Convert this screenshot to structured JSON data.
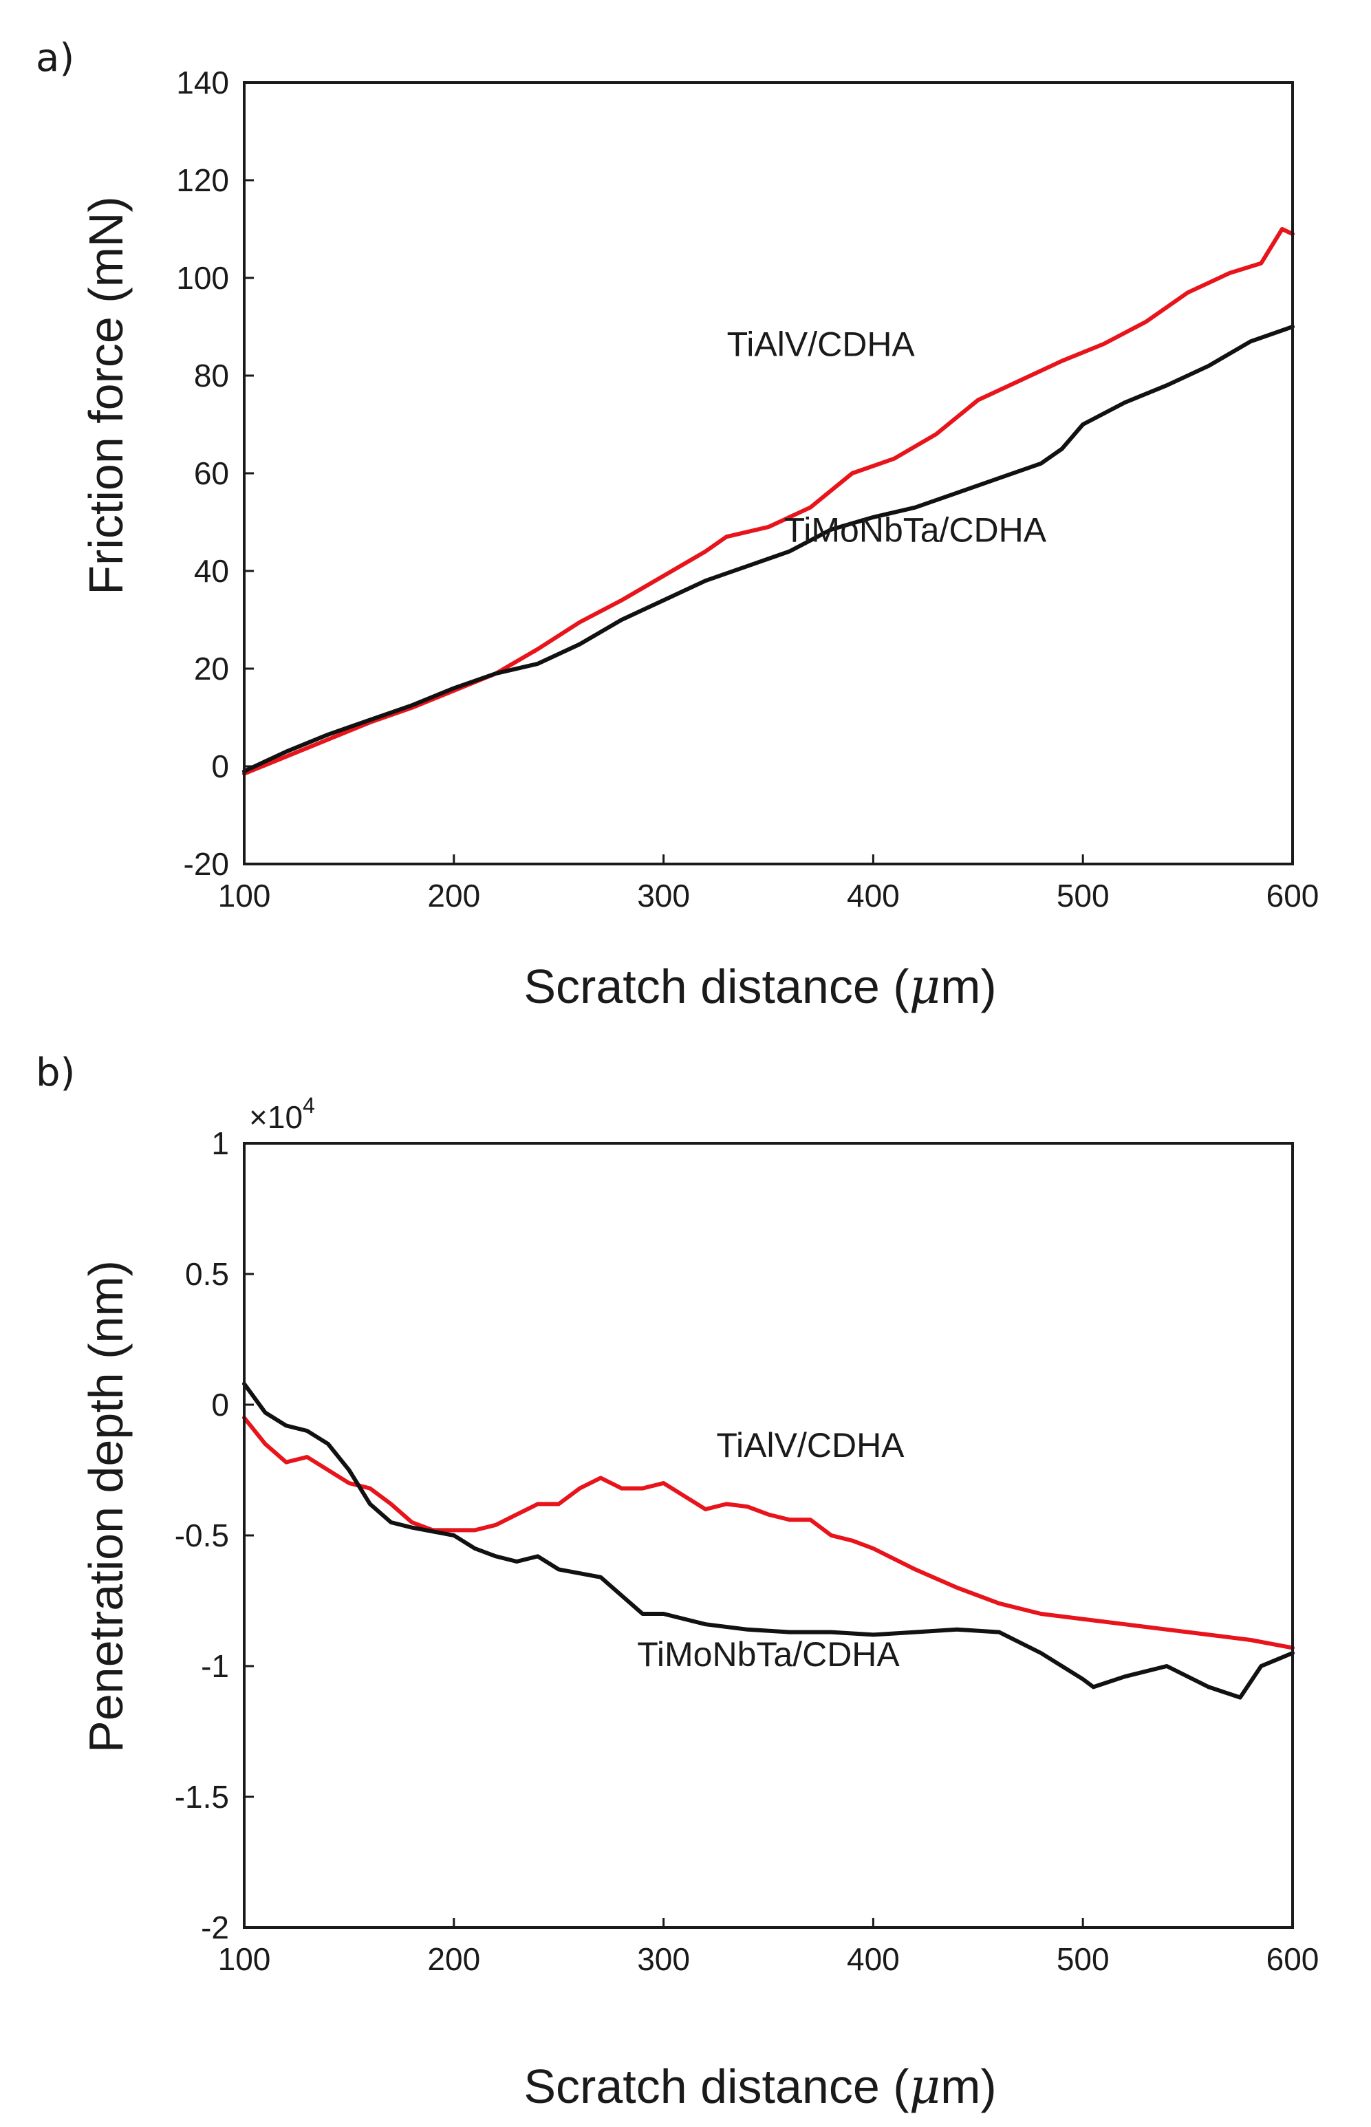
{
  "chart_data": [
    {
      "panel": "a)",
      "type": "line",
      "title": "",
      "xlabel": "Scratch distance (",
      "xlabel_unit_symbol": "μ",
      "xlabel_unit_rest": "m)",
      "ylabel": "Friction force (mN)",
      "xlim": [
        100,
        600
      ],
      "ylim": [
        -20,
        140
      ],
      "xticks": [
        100,
        200,
        300,
        400,
        500,
        600
      ],
      "yticks": [
        -20,
        0,
        20,
        40,
        60,
        80,
        100,
        120,
        140
      ],
      "grid": false,
      "series": [
        {
          "name": "TiAlV/CDHA",
          "color": "#e8141b",
          "x": [
            100,
            120,
            140,
            160,
            180,
            200,
            220,
            240,
            260,
            280,
            300,
            320,
            330,
            350,
            370,
            390,
            410,
            430,
            450,
            470,
            490,
            510,
            530,
            550,
            570,
            585,
            595,
            600
          ],
          "y": [
            -1.5,
            2,
            5.5,
            9,
            12,
            15.5,
            19,
            24,
            29.5,
            34,
            39,
            44,
            47,
            49,
            53,
            60,
            63,
            68,
            75,
            79,
            83,
            86.5,
            91,
            97,
            101,
            103,
            110,
            109
          ]
        },
        {
          "name": "TiMoNbTa/CDHA",
          "color": "#111111",
          "x": [
            100,
            120,
            140,
            160,
            180,
            200,
            220,
            240,
            260,
            280,
            300,
            320,
            340,
            360,
            380,
            400,
            420,
            440,
            460,
            480,
            490,
            500,
            520,
            540,
            560,
            580,
            600
          ],
          "y": [
            -1,
            3,
            6.5,
            9.5,
            12.5,
            16,
            19,
            21,
            25,
            30,
            34,
            38,
            41,
            44,
            48.5,
            51,
            53,
            56,
            59,
            62,
            65,
            70,
            74.5,
            78,
            82,
            87,
            90
          ]
        }
      ],
      "annotations": [
        {
          "text": "TiAlV/CDHA",
          "x": 375,
          "y": 84
        },
        {
          "text": "TiMoNbTa/CDHA",
          "x": 420,
          "y": 46
        }
      ]
    },
    {
      "panel": "b)",
      "type": "line",
      "title": "",
      "xlabel": "Scratch distance (",
      "xlabel_unit_symbol": "μ",
      "xlabel_unit_rest": "m)",
      "ylabel": "Penetration depth (nm)",
      "y_multiplier_prefix": "×10",
      "y_multiplier_exp": "4",
      "xlim": [
        100,
        600
      ],
      "ylim": [
        -2,
        1
      ],
      "xticks": [
        100,
        200,
        300,
        400,
        500,
        600
      ],
      "yticks": [
        -2,
        -1.5,
        -1,
        -0.5,
        0,
        0.5,
        1
      ],
      "ytick_labels": [
        "-2",
        "-1.5",
        "-1",
        "-0.5",
        "0",
        "0.5",
        "1"
      ],
      "grid": false,
      "series": [
        {
          "name": "TiAlV/CDHA",
          "color": "#e8141b",
          "x": [
            100,
            110,
            120,
            130,
            140,
            150,
            160,
            170,
            180,
            190,
            200,
            210,
            220,
            230,
            240,
            250,
            260,
            270,
            280,
            290,
            300,
            310,
            320,
            330,
            340,
            350,
            360,
            370,
            380,
            390,
            400,
            420,
            440,
            460,
            480,
            500,
            520,
            540,
            560,
            580,
            600
          ],
          "y": [
            -0.05,
            -0.15,
            -0.22,
            -0.2,
            -0.25,
            -0.3,
            -0.32,
            -0.38,
            -0.45,
            -0.48,
            -0.48,
            -0.48,
            -0.46,
            -0.42,
            -0.38,
            -0.38,
            -0.32,
            -0.28,
            -0.32,
            -0.32,
            -0.3,
            -0.35,
            -0.4,
            -0.38,
            -0.39,
            -0.42,
            -0.44,
            -0.44,
            -0.5,
            -0.52,
            -0.55,
            -0.63,
            -0.7,
            -0.76,
            -0.8,
            -0.82,
            -0.84,
            -0.86,
            -0.88,
            -0.9,
            -0.93
          ]
        },
        {
          "name": "TiMoNbTa/CDHA",
          "color": "#111111",
          "x": [
            100,
            110,
            120,
            130,
            140,
            150,
            160,
            170,
            180,
            200,
            210,
            220,
            230,
            240,
            250,
            270,
            280,
            290,
            300,
            320,
            340,
            360,
            380,
            400,
            420,
            440,
            460,
            480,
            500,
            505,
            520,
            540,
            560,
            575,
            585,
            600
          ],
          "y": [
            0.08,
            -0.03,
            -0.08,
            -0.1,
            -0.15,
            -0.25,
            -0.38,
            -0.45,
            -0.47,
            -0.5,
            -0.55,
            -0.58,
            -0.6,
            -0.58,
            -0.63,
            -0.66,
            -0.73,
            -0.8,
            -0.8,
            -0.84,
            -0.86,
            -0.87,
            -0.87,
            -0.88,
            -0.87,
            -0.86,
            -0.87,
            -0.95,
            -1.05,
            -1.08,
            -1.04,
            -1.0,
            -1.08,
            -1.12,
            -1.0,
            -0.95
          ]
        }
      ],
      "annotations": [
        {
          "text": "TiAlV/CDHA",
          "x": 370,
          "y": -0.2
        },
        {
          "text": "TiMoNbTa/CDHA",
          "x": 350,
          "y": -1.0
        }
      ]
    }
  ]
}
